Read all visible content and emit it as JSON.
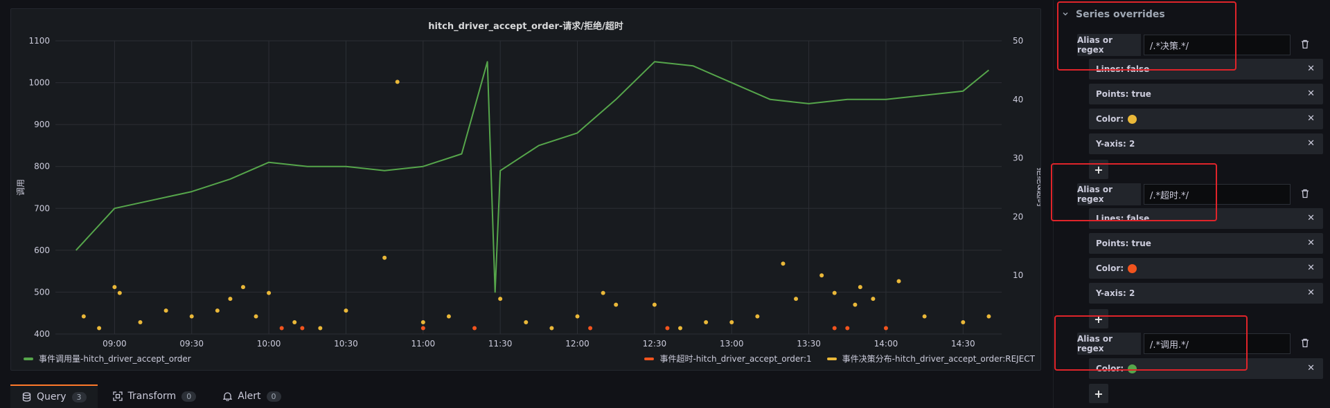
{
  "chart_data": {
    "type": "line",
    "title": "hitch_driver_accept_order-请求/拒绝/超时",
    "ylabel_left": "调用",
    "ylabel_right": "拒绝&超时",
    "ylim_left": [
      400,
      1100
    ],
    "ylim_right": [
      0,
      50
    ],
    "y_left_ticks": [
      "1100",
      "1000",
      "900",
      "800",
      "700",
      "600",
      "500",
      "400"
    ],
    "y_right_ticks": [
      "50",
      "40",
      "30",
      "20",
      "10"
    ],
    "x_ticks": [
      "09:00",
      "09:30",
      "10:00",
      "10:30",
      "11:00",
      "11:30",
      "12:00",
      "12:30",
      "13:00",
      "13:30",
      "14:00",
      "14:30"
    ],
    "series": [
      {
        "name": "事件调用量-hitch_driver_accept_order",
        "color": "#56a64b",
        "axis": "left",
        "render": "line",
        "x": [
          "08:45",
          "09:00",
          "09:15",
          "09:30",
          "09:45",
          "10:00",
          "10:15",
          "10:30",
          "10:45",
          "11:00",
          "11:15",
          "11:25",
          "11:28",
          "11:30",
          "11:45",
          "12:00",
          "12:15",
          "12:30",
          "12:45",
          "13:00",
          "13:15",
          "13:30",
          "13:45",
          "14:00",
          "14:15",
          "14:30",
          "14:40"
        ],
        "values": [
          600,
          700,
          720,
          740,
          770,
          810,
          800,
          800,
          790,
          800,
          830,
          1050,
          500,
          790,
          850,
          880,
          960,
          1050,
          1040,
          1000,
          960,
          950,
          960,
          960,
          970,
          980,
          1030
        ]
      },
      {
        "name": "事件超时-hitch_driver_accept_order:1",
        "color": "#f2541e",
        "axis": "right",
        "render": "points",
        "x": [
          "10:05",
          "10:13",
          "11:00",
          "11:20",
          "12:05",
          "12:35",
          "13:40",
          "13:45",
          "14:00"
        ],
        "values": [
          1,
          1,
          1,
          1,
          1,
          1,
          1,
          1,
          1
        ]
      },
      {
        "name": "事件决策分布-hitch_driver_accept_order:REJECT",
        "color": "#eab839",
        "axis": "right",
        "render": "points",
        "x": [
          "08:48",
          "08:54",
          "09:00",
          "09:02",
          "09:10",
          "09:20",
          "09:30",
          "09:40",
          "09:45",
          "09:50",
          "09:55",
          "10:00",
          "10:10",
          "10:20",
          "10:30",
          "10:45",
          "10:50",
          "11:00",
          "11:10",
          "11:30",
          "11:40",
          "11:50",
          "12:00",
          "12:10",
          "12:15",
          "12:30",
          "12:40",
          "12:50",
          "13:00",
          "13:10",
          "13:20",
          "13:25",
          "13:35",
          "13:40",
          "13:48",
          "13:50",
          "13:55",
          "14:05",
          "14:15",
          "14:30",
          "14:40"
        ],
        "values": [
          3,
          1,
          8,
          7,
          2,
          4,
          3,
          4,
          6,
          8,
          3,
          7,
          2,
          1,
          4,
          13,
          43,
          2,
          3,
          6,
          2,
          1,
          3,
          7,
          5,
          5,
          1,
          2,
          2,
          3,
          12,
          6,
          10,
          7,
          5,
          8,
          6,
          9,
          3,
          2,
          3
        ]
      }
    ],
    "grid": true,
    "legend": "bottom"
  },
  "tabs": [
    {
      "label": "Query",
      "count": "3",
      "icon": "database-icon"
    },
    {
      "label": "Transform",
      "count": "0",
      "icon": "transform-icon"
    },
    {
      "label": "Alert",
      "count": "0",
      "icon": "bell-icon"
    }
  ],
  "overrides": {
    "title": "Series overrides",
    "blocks": [
      {
        "alias_label": "Alias or regex",
        "alias_value": "/.*决策.*/",
        "props": [
          {
            "label": "Lines: false"
          },
          {
            "label": "Points: true"
          },
          {
            "label": "Color:",
            "color": "#eab839"
          },
          {
            "label": "Y-axis: 2"
          }
        ]
      },
      {
        "alias_label": "Alias or regex",
        "alias_value": "/.*超时.*/",
        "props": [
          {
            "label": "Lines: false"
          },
          {
            "label": "Points: true"
          },
          {
            "label": "Color:",
            "color": "#f2541e"
          },
          {
            "label": "Y-axis: 2"
          }
        ]
      },
      {
        "alias_label": "Alias or regex",
        "alias_value": "/.*调用.*/",
        "props": [
          {
            "label": "Color:",
            "color": "#56a64b"
          }
        ]
      }
    ],
    "add_label": "+"
  }
}
